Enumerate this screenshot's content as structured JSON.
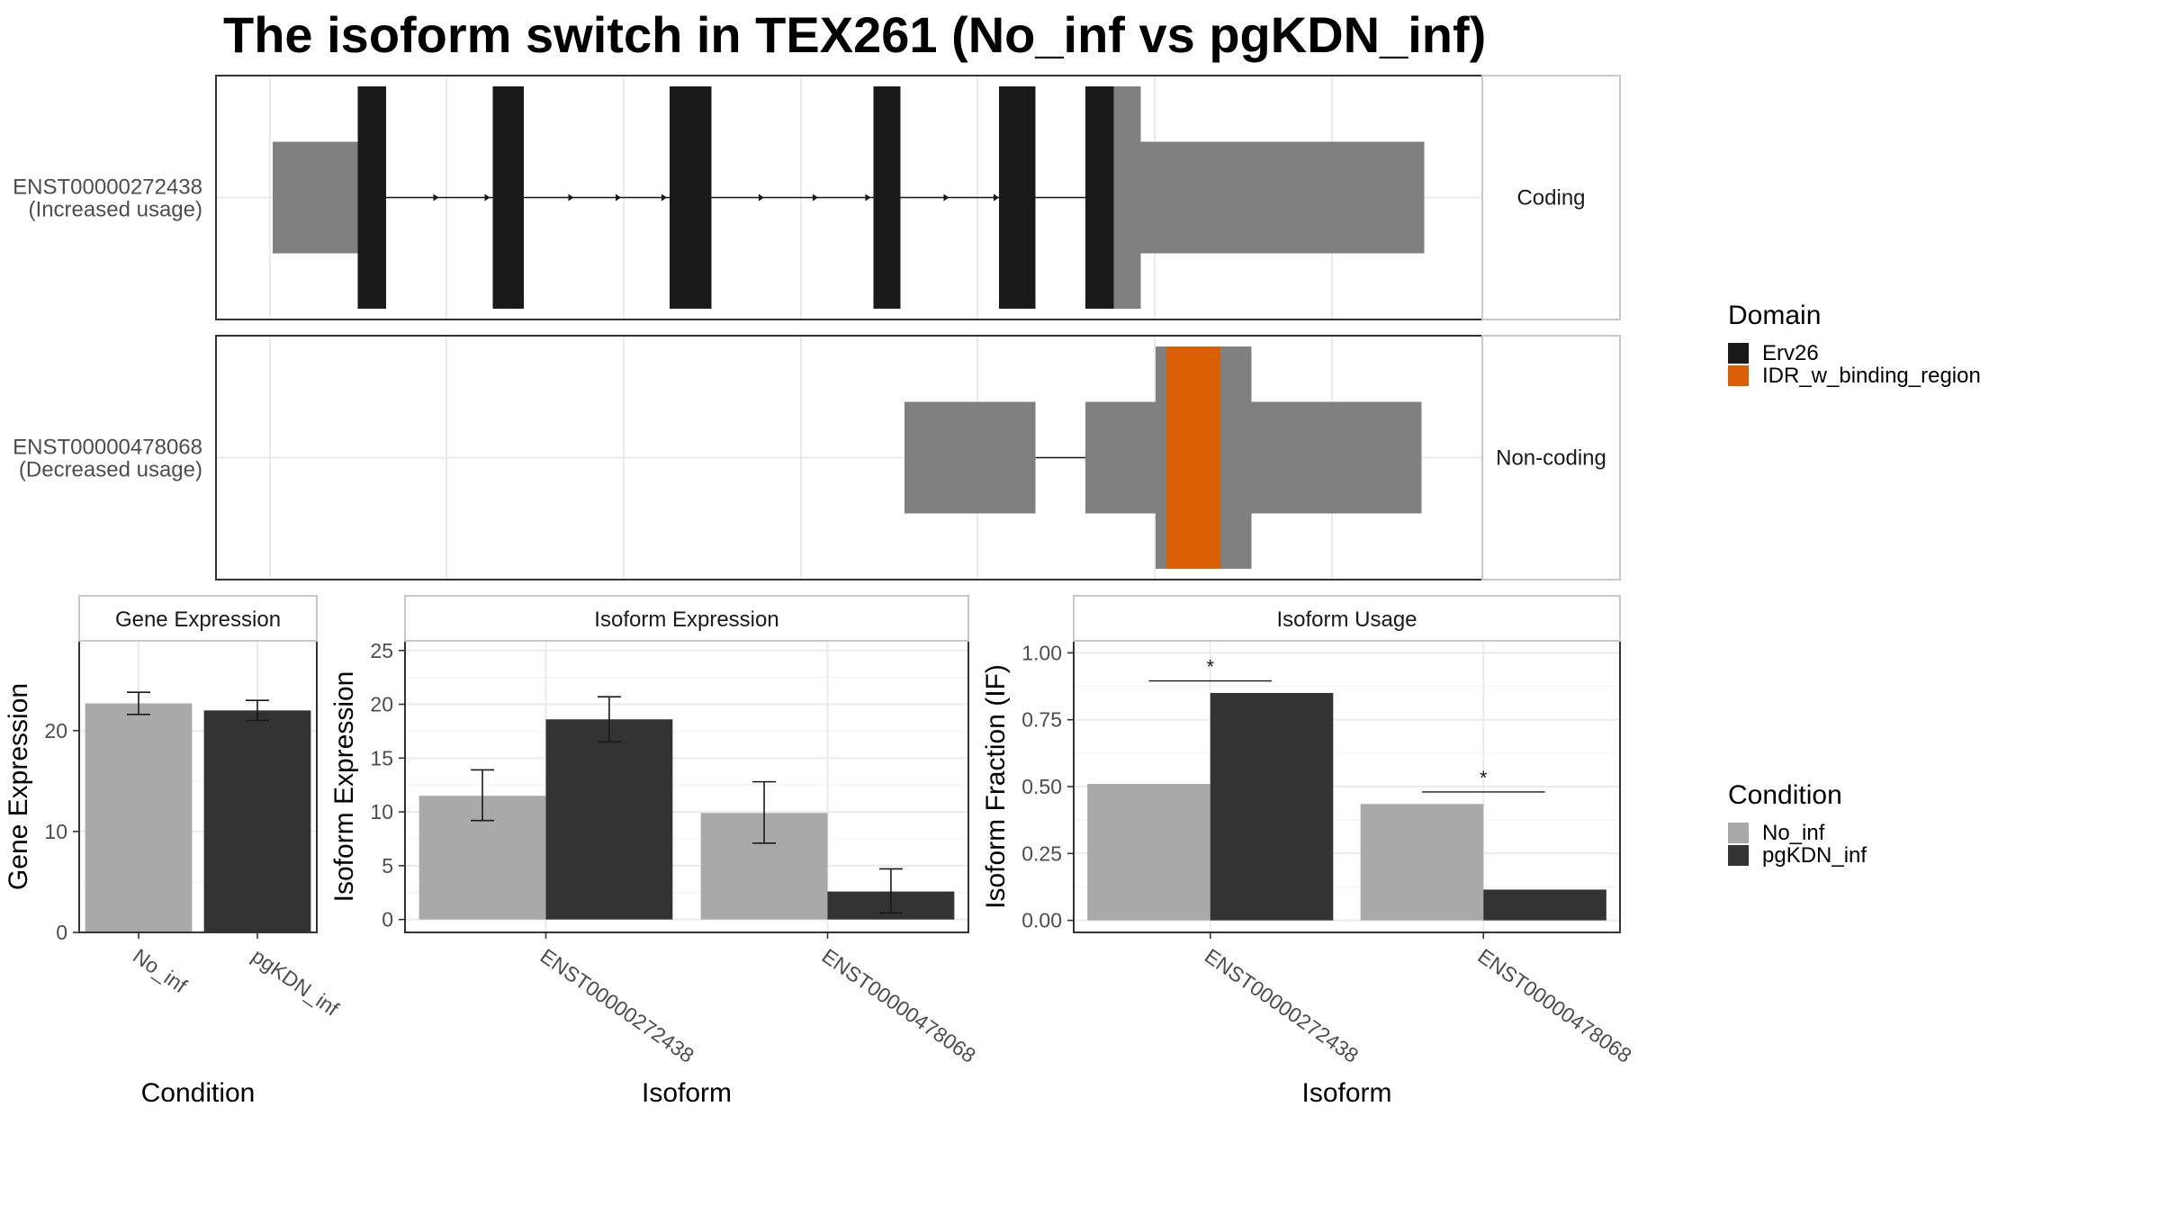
{
  "title": "The isoform switch in TEX261 (No_inf vs pgKDN_inf)",
  "colors": {
    "erv26": "#1a1a1a",
    "idr": "#d95f02",
    "utr": "#808080",
    "no_inf": "#a9a9a9",
    "pgkdn_inf": "#333333",
    "grid": "#ebebeb",
    "frame": "#333333",
    "strip_border": "#c8c8c8"
  },
  "transcripts": [
    {
      "id": "ENST00000272438",
      "usage": "(Increased usage)",
      "facet": "Coding",
      "tall_blocks": [
        [
          265,
          286
        ],
        [
          365,
          388
        ],
        [
          496,
          527
        ],
        [
          647,
          667
        ],
        [
          740,
          767
        ],
        [
          804,
          825
        ]
      ],
      "tall_utr_blocks": [
        [
          825,
          845
        ]
      ],
      "short_utr_blocks": [
        [
          202,
          265
        ],
        [
          845,
          1055
        ]
      ],
      "intron": [
        286,
        804
      ],
      "arrows": [
        325,
        363,
        425,
        460,
        494,
        566,
        606,
        645,
        703,
        740
      ]
    },
    {
      "id": "ENST00000478068",
      "usage": "(Decreased usage)",
      "facet": "Non-coding",
      "short_utr_blocks": [
        [
          670,
          767
        ],
        [
          804,
          1053
        ]
      ],
      "tall_utr_blocks": [
        [
          856,
          927
        ]
      ],
      "idr_blocks": [
        [
          864,
          904
        ]
      ],
      "intron": [
        767,
        804
      ]
    }
  ],
  "legend_domain": {
    "title": "Domain",
    "items": [
      {
        "label": "Erv26",
        "color": "#1a1a1a"
      },
      {
        "label": "IDR_w_binding_region",
        "color": "#d95f02"
      }
    ]
  },
  "legend_condition": {
    "title": "Condition",
    "items": [
      {
        "label": "No_inf",
        "color": "#a9a9a9"
      },
      {
        "label": "pgKDN_inf",
        "color": "#333333"
      }
    ]
  },
  "chart_data": [
    {
      "type": "bar",
      "strip": "Gene Expression",
      "xlabel": "Condition",
      "ylabel": "Gene Expression",
      "categories": [
        "No_inf",
        "pgKDN_inf"
      ],
      "values": [
        22.7,
        22.0
      ],
      "error": [
        [
          21.6,
          23.8
        ],
        [
          21.0,
          23.0
        ]
      ],
      "yticks": [
        0,
        10,
        20
      ],
      "ylim": [
        0,
        28.9
      ]
    },
    {
      "type": "bar",
      "strip": "Isoform Expression",
      "xlabel": "Isoform",
      "ylabel": "Isoform Expression",
      "categories": [
        "ENST00000272438",
        "ENST00000478068"
      ],
      "series": [
        {
          "name": "No_inf",
          "values": [
            11.5,
            9.9
          ],
          "error": [
            [
              9.2,
              13.9
            ],
            [
              7.1,
              12.8
            ]
          ]
        },
        {
          "name": "pgKDN_inf",
          "values": [
            18.6,
            2.6
          ],
          "error": [
            [
              16.5,
              20.7
            ],
            [
              0.6,
              4.7
            ]
          ]
        }
      ],
      "yticks": [
        0,
        5,
        10,
        15,
        20,
        25
      ],
      "ylim": [
        -1.2,
        25.9
      ]
    },
    {
      "type": "bar",
      "strip": "Isoform Usage",
      "xlabel": "Isoform",
      "ylabel": "Isoform Fraction (IF)",
      "categories": [
        "ENST00000272438",
        "ENST00000478068"
      ],
      "series": [
        {
          "name": "No_inf",
          "values": [
            0.51,
            0.435
          ]
        },
        {
          "name": "pgKDN_inf",
          "values": [
            0.85,
            0.115
          ]
        }
      ],
      "significance": [
        "*",
        "*"
      ],
      "yticks": [
        0.0,
        0.25,
        0.5,
        0.75,
        1.0
      ],
      "yticklabels": [
        "0.00",
        "0.25",
        "0.50",
        "0.75",
        "1.00"
      ],
      "ylim": [
        -0.045,
        1.045
      ]
    }
  ]
}
